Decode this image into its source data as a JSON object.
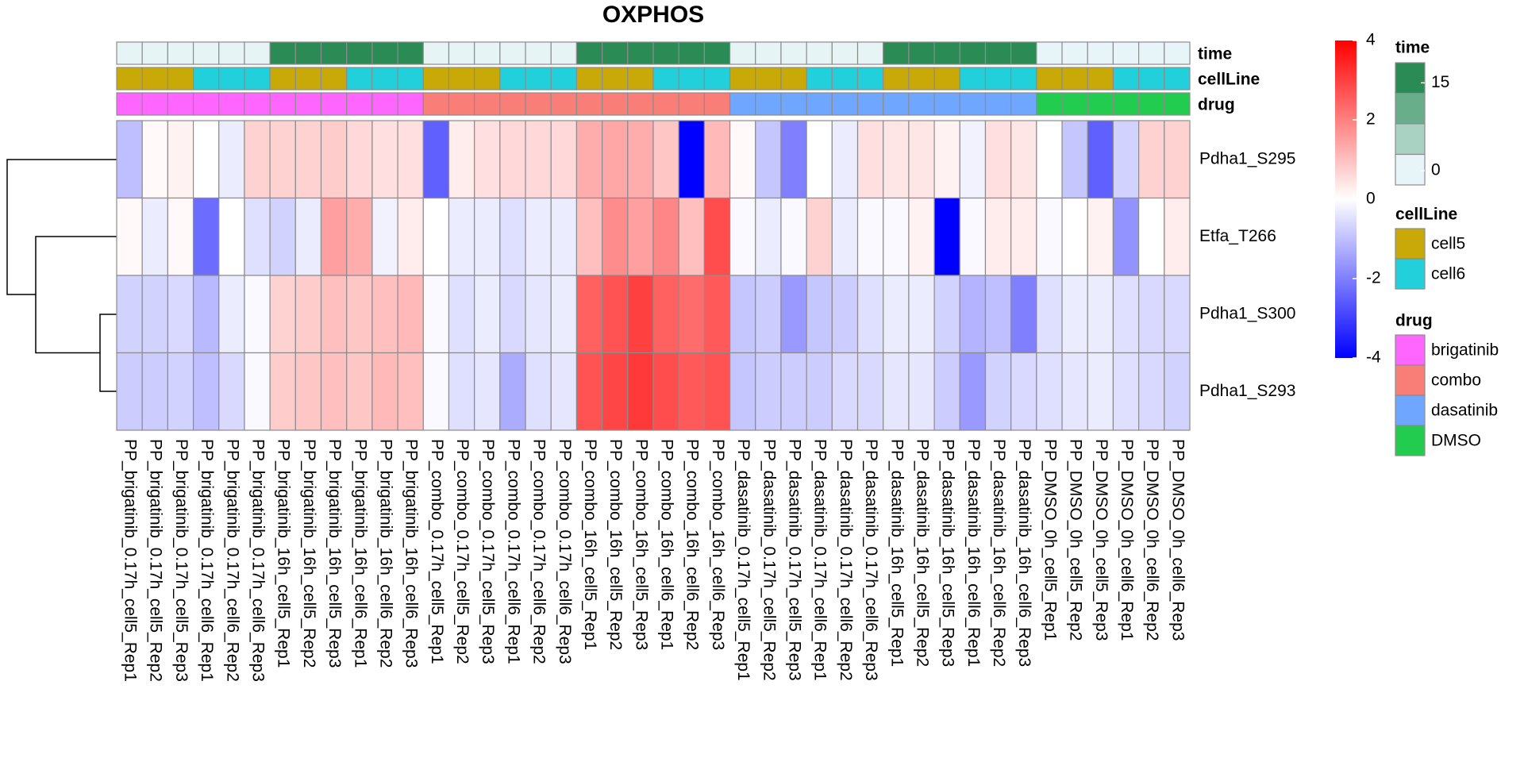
{
  "chart_data": {
    "type": "heatmap",
    "title": "OXPHOS",
    "rows": [
      "Pdha1_S295",
      "Etfa_T266",
      "Pdha1_S300",
      "Pdha1_S293"
    ],
    "columns": [
      "PP_brigatinib_0.17h_cell5_Rep1",
      "PP_brigatinib_0.17h_cell5_Rep2",
      "PP_brigatinib_0.17h_cell5_Rep3",
      "PP_brigatinib_0.17h_cell6_Rep1",
      "PP_brigatinib_0.17h_cell6_Rep2",
      "PP_brigatinib_0.17h_cell6_Rep3",
      "PP_brigatinib_16h_cell5_Rep1",
      "PP_brigatinib_16h_cell5_Rep2",
      "PP_brigatinib_16h_cell5_Rep3",
      "PP_brigatinib_16h_cell6_Rep1",
      "PP_brigatinib_16h_cell6_Rep2",
      "PP_brigatinib_16h_cell6_Rep3",
      "PP_combo_0.17h_cell5_Rep1",
      "PP_combo_0.17h_cell5_Rep2",
      "PP_combo_0.17h_cell5_Rep3",
      "PP_combo_0.17h_cell6_Rep1",
      "PP_combo_0.17h_cell6_Rep2",
      "PP_combo_0.17h_cell6_Rep3",
      "PP_combo_16h_cell5_Rep1",
      "PP_combo_16h_cell5_Rep2",
      "PP_combo_16h_cell5_Rep3",
      "PP_combo_16h_cell6_Rep1",
      "PP_combo_16h_cell6_Rep2",
      "PP_combo_16h_cell6_Rep3",
      "PP_dasatinib_0.17h_cell5_Rep1",
      "PP_dasatinib_0.17h_cell5_Rep2",
      "PP_dasatinib_0.17h_cell5_Rep3",
      "PP_dasatinib_0.17h_cell6_Rep1",
      "PP_dasatinib_0.17h_cell6_Rep2",
      "PP_dasatinib_0.17h_cell6_Rep3",
      "PP_dasatinib_16h_cell5_Rep1",
      "PP_dasatinib_16h_cell5_Rep2",
      "PP_dasatinib_16h_cell5_Rep3",
      "PP_dasatinib_16h_cell6_Rep1",
      "PP_dasatinib_16h_cell6_Rep2",
      "PP_dasatinib_16h_cell6_Rep3",
      "PP_DMSO_0h_cell5_Rep1",
      "PP_DMSO_0h_cell5_Rep2",
      "PP_DMSO_0h_cell5_Rep3",
      "PP_DMSO_0h_cell6_Rep1",
      "PP_DMSO_0h_cell6_Rep2",
      "PP_DMSO_0h_cell6_Rep3"
    ],
    "values": [
      [
        -1.0,
        0.1,
        0.2,
        0,
        -0.3,
        0.7,
        0.7,
        0.7,
        0.8,
        0.6,
        0.5,
        0.5,
        -2.5,
        0.3,
        0.5,
        0.6,
        0.6,
        0.6,
        1.3,
        1.4,
        1.3,
        0.9,
        -4,
        1.1,
        0.1,
        -0.9,
        -2.0,
        0,
        -0.3,
        0.5,
        0.4,
        0.4,
        0.2,
        -0.2,
        0.5,
        0.4,
        0,
        -0.9,
        -2.5,
        -0.7,
        0.7,
        0.7
      ],
      [
        0.1,
        -0.3,
        0.1,
        -2.3,
        0,
        -0.5,
        -0.7,
        -0.3,
        1.5,
        1.3,
        -0.2,
        0.3,
        0,
        -0.3,
        -0.3,
        -0.5,
        -0.3,
        -0.3,
        1.0,
        1.8,
        1.5,
        1.9,
        1.0,
        2.8,
        -0.1,
        -0.3,
        -0.1,
        0.7,
        -0.3,
        -0.1,
        -0.1,
        0.2,
        -4,
        -0.1,
        0.3,
        0.3,
        -0.1,
        0,
        0.2,
        -1.7,
        0,
        0.3
      ],
      [
        -0.7,
        -0.7,
        -0.6,
        -1.1,
        -0.3,
        -0.1,
        0.7,
        0.8,
        1.0,
        0.9,
        1.0,
        1.1,
        -0.1,
        -0.5,
        -0.3,
        -0.6,
        -0.4,
        -0.3,
        2.5,
        2.7,
        3.0,
        2.5,
        2.3,
        2.6,
        -0.9,
        -0.8,
        -1.6,
        -0.9,
        -0.8,
        -0.5,
        -0.3,
        -0.3,
        -0.7,
        -1.2,
        -1.0,
        -2.0,
        -0.5,
        -0.3,
        -0.3,
        -0.5,
        -0.6,
        -0.6
      ],
      [
        -0.8,
        -0.8,
        -0.7,
        -1.0,
        -0.6,
        -0.1,
        0.8,
        0.9,
        1.0,
        0.9,
        1.1,
        1.0,
        -0.1,
        -0.5,
        -0.4,
        -1.3,
        -0.5,
        -0.4,
        2.7,
        2.9,
        3.1,
        2.8,
        2.6,
        2.7,
        -0.9,
        -0.8,
        -0.8,
        -0.8,
        -0.6,
        -0.6,
        -0.4,
        -0.4,
        -0.8,
        -1.6,
        -0.7,
        -0.6,
        -0.5,
        -0.4,
        -0.3,
        -0.5,
        -0.6,
        -0.7
      ]
    ],
    "zlim": [
      -4,
      4
    ],
    "zticks": [
      4,
      2,
      0,
      -2,
      -4
    ],
    "colors": {
      "low": "#0000ff",
      "mid": "#ffffff",
      "high": "#ff0000"
    },
    "annotations": [
      {
        "name": "time",
        "lim": [
          0,
          16
        ],
        "ticks": [
          15,
          0
        ],
        "colors": [
          "#e8f5f8",
          "#2a8b55"
        ],
        "values": [
          0.17,
          0.17,
          0.17,
          0.17,
          0.17,
          0.17,
          16,
          16,
          16,
          16,
          16,
          16,
          0.17,
          0.17,
          0.17,
          0.17,
          0.17,
          0.17,
          16,
          16,
          16,
          16,
          16,
          16,
          0.17,
          0.17,
          0.17,
          0.17,
          0.17,
          0.17,
          16,
          16,
          16,
          16,
          16,
          16,
          0,
          0,
          0,
          0,
          0,
          0
        ]
      },
      {
        "name": "cellLine",
        "levels": [
          "cell5",
          "cell6"
        ],
        "colors": [
          "#c9a908",
          "#22d0dc"
        ],
        "values": [
          "cell5",
          "cell5",
          "cell5",
          "cell6",
          "cell6",
          "cell6",
          "cell5",
          "cell5",
          "cell5",
          "cell6",
          "cell6",
          "cell6",
          "cell5",
          "cell5",
          "cell5",
          "cell6",
          "cell6",
          "cell6",
          "cell5",
          "cell5",
          "cell5",
          "cell6",
          "cell6",
          "cell6",
          "cell5",
          "cell5",
          "cell5",
          "cell6",
          "cell6",
          "cell6",
          "cell5",
          "cell5",
          "cell5",
          "cell6",
          "cell6",
          "cell6",
          "cell5",
          "cell5",
          "cell5",
          "cell6",
          "cell6",
          "cell6"
        ]
      },
      {
        "name": "drug",
        "levels": [
          "brigatinib",
          "combo",
          "dasatinib",
          "DMSO"
        ],
        "colors": [
          "#ff66ff",
          "#fa7e78",
          "#6fa6ff",
          "#22cc4e"
        ],
        "values": [
          "brigatinib",
          "brigatinib",
          "brigatinib",
          "brigatinib",
          "brigatinib",
          "brigatinib",
          "brigatinib",
          "brigatinib",
          "brigatinib",
          "brigatinib",
          "brigatinib",
          "brigatinib",
          "combo",
          "combo",
          "combo",
          "combo",
          "combo",
          "combo",
          "combo",
          "combo",
          "combo",
          "combo",
          "combo",
          "combo",
          "dasatinib",
          "dasatinib",
          "dasatinib",
          "dasatinib",
          "dasatinib",
          "dasatinib",
          "dasatinib",
          "dasatinib",
          "dasatinib",
          "dasatinib",
          "dasatinib",
          "dasatinib",
          "DMSO",
          "DMSO",
          "DMSO",
          "DMSO",
          "DMSO",
          "DMSO"
        ]
      }
    ]
  }
}
